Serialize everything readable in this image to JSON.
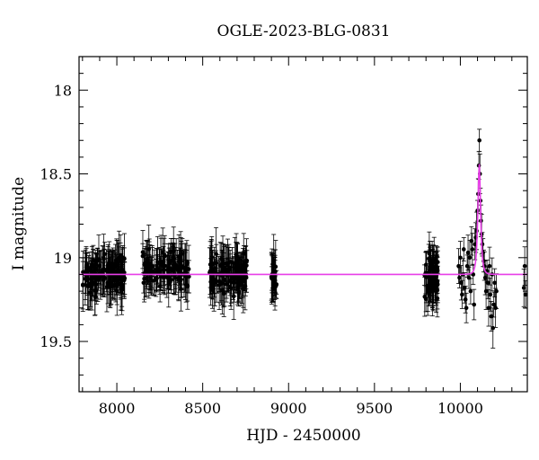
{
  "chart_data": {
    "type": "scatter",
    "title": "OGLE-2023-BLG-0831",
    "xlabel": "HJD - 2450000",
    "ylabel": "I magnitude",
    "xlim": [
      7780,
      10390
    ],
    "ylim": [
      19.8,
      17.8
    ],
    "y_inverted": true,
    "grid": false,
    "x_ticks": [
      8000,
      8500,
      9000,
      9500,
      10000
    ],
    "x_tick_labels": [
      "8000",
      "8500",
      "9000",
      "9500",
      "10000"
    ],
    "y_ticks": [
      18,
      18.5,
      19,
      19.5
    ],
    "y_tick_labels": [
      "18",
      "18.5",
      "19",
      "19.5"
    ],
    "baseline_mag": 19.1,
    "seasons": [
      {
        "start": 7800,
        "end": 8050,
        "center": 19.1,
        "spread": 0.09,
        "count": 130
      },
      {
        "start": 8150,
        "end": 8420,
        "center": 19.07,
        "spread": 0.08,
        "count": 130
      },
      {
        "start": 8540,
        "end": 8760,
        "center": 19.1,
        "spread": 0.09,
        "count": 120
      },
      {
        "start": 8900,
        "end": 8930,
        "center": 19.1,
        "spread": 0.08,
        "count": 25
      },
      {
        "start": 9790,
        "end": 9870,
        "center": 19.1,
        "spread": 0.11,
        "count": 70
      }
    ],
    "event_points": [
      {
        "x": 9990,
        "y": 19.05
      },
      {
        "x": 9995,
        "y": 19.12
      },
      {
        "x": 10000,
        "y": 19.0
      },
      {
        "x": 10005,
        "y": 19.15
      },
      {
        "x": 10010,
        "y": 19.22
      },
      {
        "x": 10015,
        "y": 19.1
      },
      {
        "x": 10020,
        "y": 18.95
      },
      {
        "x": 10025,
        "y": 19.18
      },
      {
        "x": 10030,
        "y": 19.25
      },
      {
        "x": 10035,
        "y": 19.3
      },
      {
        "x": 10040,
        "y": 19.05
      },
      {
        "x": 10045,
        "y": 18.97
      },
      {
        "x": 10050,
        "y": 19.12
      },
      {
        "x": 10055,
        "y": 19.0
      },
      {
        "x": 10060,
        "y": 19.2
      },
      {
        "x": 10065,
        "y": 18.9
      },
      {
        "x": 10070,
        "y": 18.95
      },
      {
        "x": 10075,
        "y": 19.1
      },
      {
        "x": 10080,
        "y": 19.28
      },
      {
        "x": 10085,
        "y": 18.92
      },
      {
        "x": 10090,
        "y": 18.88
      },
      {
        "x": 10095,
        "y": 18.84
      },
      {
        "x": 10100,
        "y": 18.72
      },
      {
        "x": 10104,
        "y": 18.62
      },
      {
        "x": 10108,
        "y": 18.45
      },
      {
        "x": 10111,
        "y": 18.3
      },
      {
        "x": 10114,
        "y": 18.5
      },
      {
        "x": 10117,
        "y": 18.66
      },
      {
        "x": 10120,
        "y": 18.78
      },
      {
        "x": 10124,
        "y": 18.86
      },
      {
        "x": 10128,
        "y": 18.92
      },
      {
        "x": 10132,
        "y": 18.97
      },
      {
        "x": 10136,
        "y": 19.02
      },
      {
        "x": 10140,
        "y": 19.05
      },
      {
        "x": 10145,
        "y": 19.12
      },
      {
        "x": 10150,
        "y": 19.2
      },
      {
        "x": 10155,
        "y": 19.08
      },
      {
        "x": 10160,
        "y": 19.15
      },
      {
        "x": 10165,
        "y": 19.3
      },
      {
        "x": 10170,
        "y": 19.05
      },
      {
        "x": 10175,
        "y": 19.22
      },
      {
        "x": 10180,
        "y": 19.35
      },
      {
        "x": 10185,
        "y": 19.1
      },
      {
        "x": 10190,
        "y": 19.42
      },
      {
        "x": 10195,
        "y": 19.28
      },
      {
        "x": 10200,
        "y": 19.15
      },
      {
        "x": 10205,
        "y": 19.3
      },
      {
        "x": 10210,
        "y": 19.2
      },
      {
        "x": 10370,
        "y": 19.18
      },
      {
        "x": 10375,
        "y": 19.05
      },
      {
        "x": 10380,
        "y": 19.22
      }
    ],
    "model": {
      "t0": 10110,
      "u0": 0.62,
      "tE": 12,
      "baseline": 19.1,
      "color": "#e83fe8"
    },
    "point_color": "#000000"
  }
}
